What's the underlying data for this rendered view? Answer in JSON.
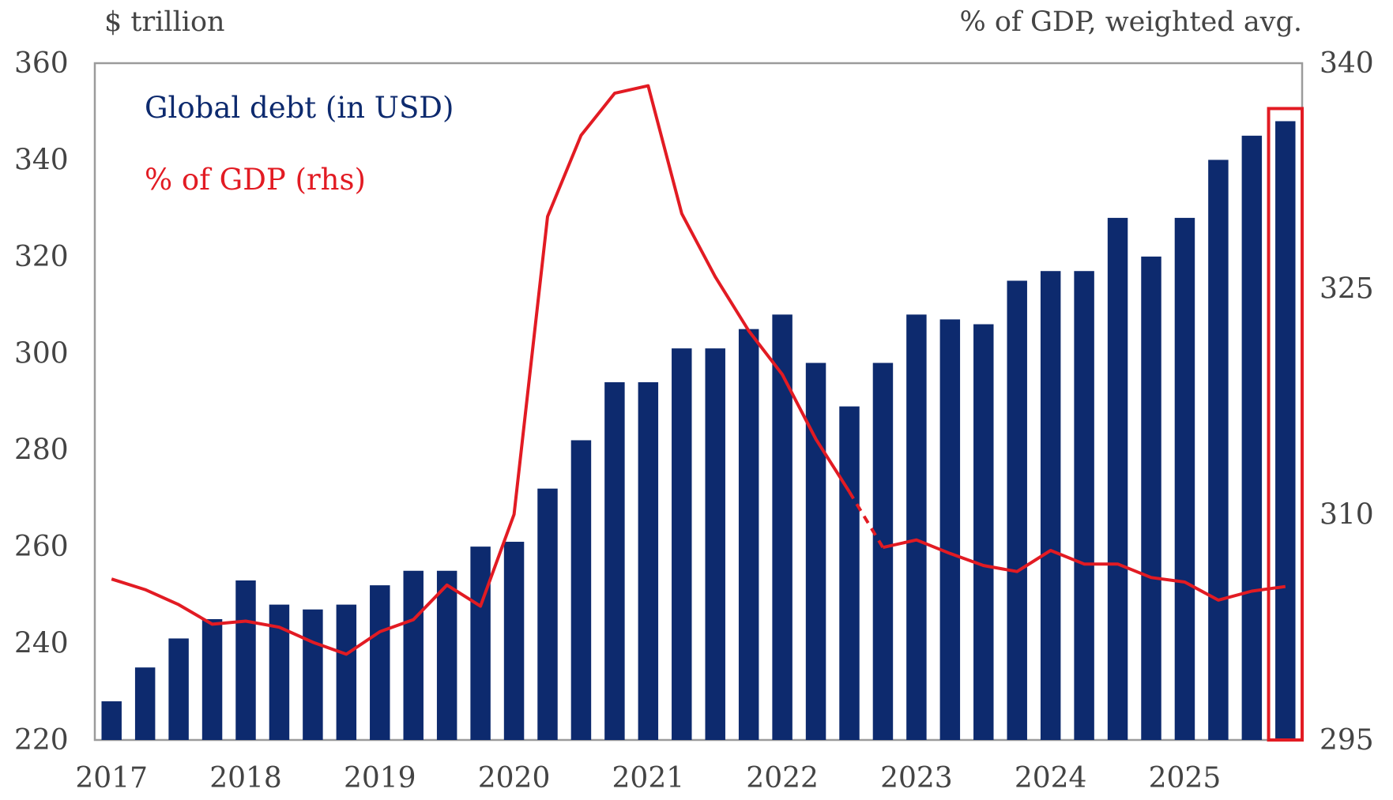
{
  "chart_data": {
    "type": "bar",
    "xlabel": "",
    "left_axis_label": "$ trillion",
    "right_axis_label": "% of GDP, weighted avg.",
    "ylim_left": [
      220,
      360
    ],
    "ylim_right": [
      295,
      340
    ],
    "yticks_left": [
      220,
      240,
      260,
      280,
      300,
      320,
      340,
      360
    ],
    "yticks_right": [
      295,
      310,
      325,
      340
    ],
    "x_year_labels": [
      "2017",
      "2018",
      "2019",
      "2020",
      "2021",
      "2022",
      "2023",
      "2024",
      "2025"
    ],
    "categories": [
      "2017 Q1",
      "2017 Q2",
      "2017 Q3",
      "2017 Q4",
      "2018 Q1",
      "2018 Q2",
      "2018 Q3",
      "2018 Q4",
      "2019 Q1",
      "2019 Q2",
      "2019 Q3",
      "2019 Q4",
      "2020 Q1",
      "2020 Q2",
      "2020 Q3",
      "2020 Q4",
      "2021 Q1",
      "2021 Q2",
      "2021 Q3",
      "2021 Q4",
      "2022 Q1",
      "2022 Q2",
      "2022 Q3",
      "2022 Q4",
      "2023 Q1",
      "2023 Q2",
      "2023 Q3",
      "2023 Q4",
      "2024 Q1",
      "2024 Q2",
      "2024 Q3",
      "2024 Q4",
      "2025 Q1",
      "2025 Q2",
      "2025 Q3",
      "2025 Q4"
    ],
    "series": [
      {
        "name": "Global debt (in USD)",
        "kind": "bar",
        "axis": "left",
        "color": "#0d2a6e",
        "values": [
          228,
          235,
          241,
          245,
          253,
          248,
          247,
          248,
          252,
          255,
          255,
          260,
          261,
          272,
          282,
          294,
          294,
          301,
          301,
          305,
          308,
          298,
          289,
          298,
          308,
          307,
          306,
          315,
          317,
          317,
          328,
          320,
          328,
          340,
          345,
          348
        ]
      },
      {
        "name": "% of GDP (rhs)",
        "kind": "line",
        "axis": "right",
        "color": "#e21b23",
        "values": [
          305.7,
          305.0,
          304.0,
          302.7,
          302.9,
          302.5,
          301.5,
          300.7,
          302.2,
          303.0,
          305.3,
          303.9,
          310.0,
          329.8,
          335.2,
          338.0,
          338.5,
          330.0,
          325.8,
          322.2,
          319.3,
          315.0,
          311.5,
          307.8,
          308.3,
          307.4,
          306.6,
          306.2,
          307.6,
          306.7,
          306.7,
          305.8,
          305.5,
          304.3,
          304.9,
          305.2
        ],
        "dashed_segment": {
          "from": "2022 Q3",
          "to": "2022 Q4"
        }
      }
    ],
    "highlight": {
      "category": "2025 Q4",
      "color": "#e21b23"
    },
    "grid": false,
    "legend": "top-left, text only"
  }
}
